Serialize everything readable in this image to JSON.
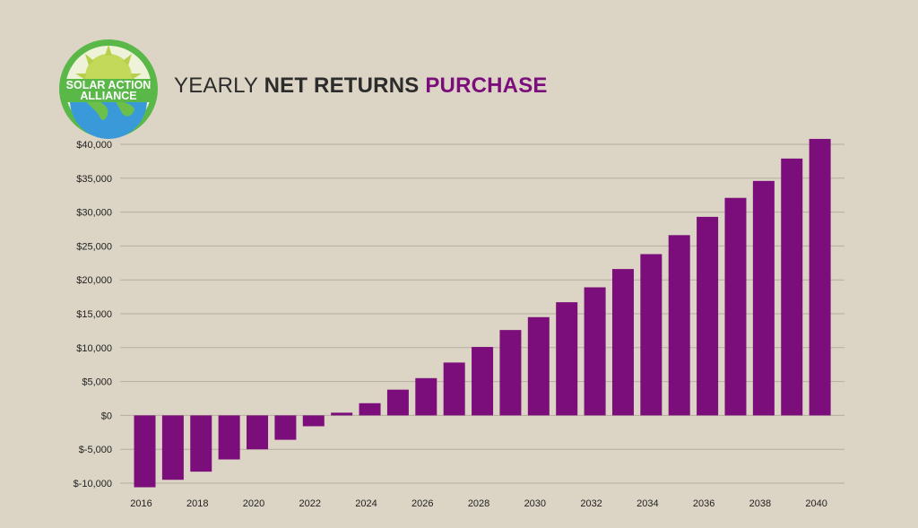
{
  "logo": {
    "line1": "SOLAR ACTION",
    "line2": "ALLIANCE"
  },
  "title": {
    "part1": "YEARLY ",
    "part2": "NET RETURNS ",
    "part3": "PURCHASE"
  },
  "colors": {
    "background": "#dcd5c5",
    "bar": "#7b0e7b",
    "title_accent": "#7b0e7b",
    "gridline": "#b5ad9d",
    "logo_ring": "#59b848",
    "logo_sun": "#c3d95a",
    "logo_earth": "#3a9ad9",
    "logo_banner": "#59b848"
  },
  "chart_data": {
    "type": "bar",
    "title": "YEARLY NET RETURNS PURCHASE",
    "xlabel": "",
    "ylabel": "",
    "ylim": [
      -10000,
      40000
    ],
    "grid": true,
    "y_ticks": [
      "$40,000",
      "$35,000",
      "$30,000",
      "$25,000",
      "$20,000",
      "$15,000",
      "$10,000",
      "$5,000",
      "$0",
      "$-5,000",
      "$-10,000"
    ],
    "y_tick_values": [
      40000,
      35000,
      30000,
      25000,
      20000,
      15000,
      10000,
      5000,
      0,
      -5000,
      -10000
    ],
    "x_tick_labels": [
      "2016",
      "2018",
      "2020",
      "2022",
      "2024",
      "2026",
      "2028",
      "2030",
      "2032",
      "2034",
      "2036",
      "2038",
      "2040"
    ],
    "categories": [
      "2016",
      "2017",
      "2018",
      "2019",
      "2020",
      "2021",
      "2022",
      "2023",
      "2024",
      "2025",
      "2026",
      "2027",
      "2028",
      "2029",
      "2030",
      "2031",
      "2032",
      "2033",
      "2034",
      "2035",
      "2036",
      "2037",
      "2038",
      "2039",
      "2040"
    ],
    "values": [
      -10600,
      -9500,
      -8300,
      -6500,
      -5000,
      -3600,
      -1600,
      400,
      1800,
      3800,
      5500,
      7800,
      10100,
      12600,
      14500,
      16700,
      18900,
      21600,
      23800,
      26600,
      29300,
      32100,
      34600,
      37900,
      40800
    ]
  }
}
